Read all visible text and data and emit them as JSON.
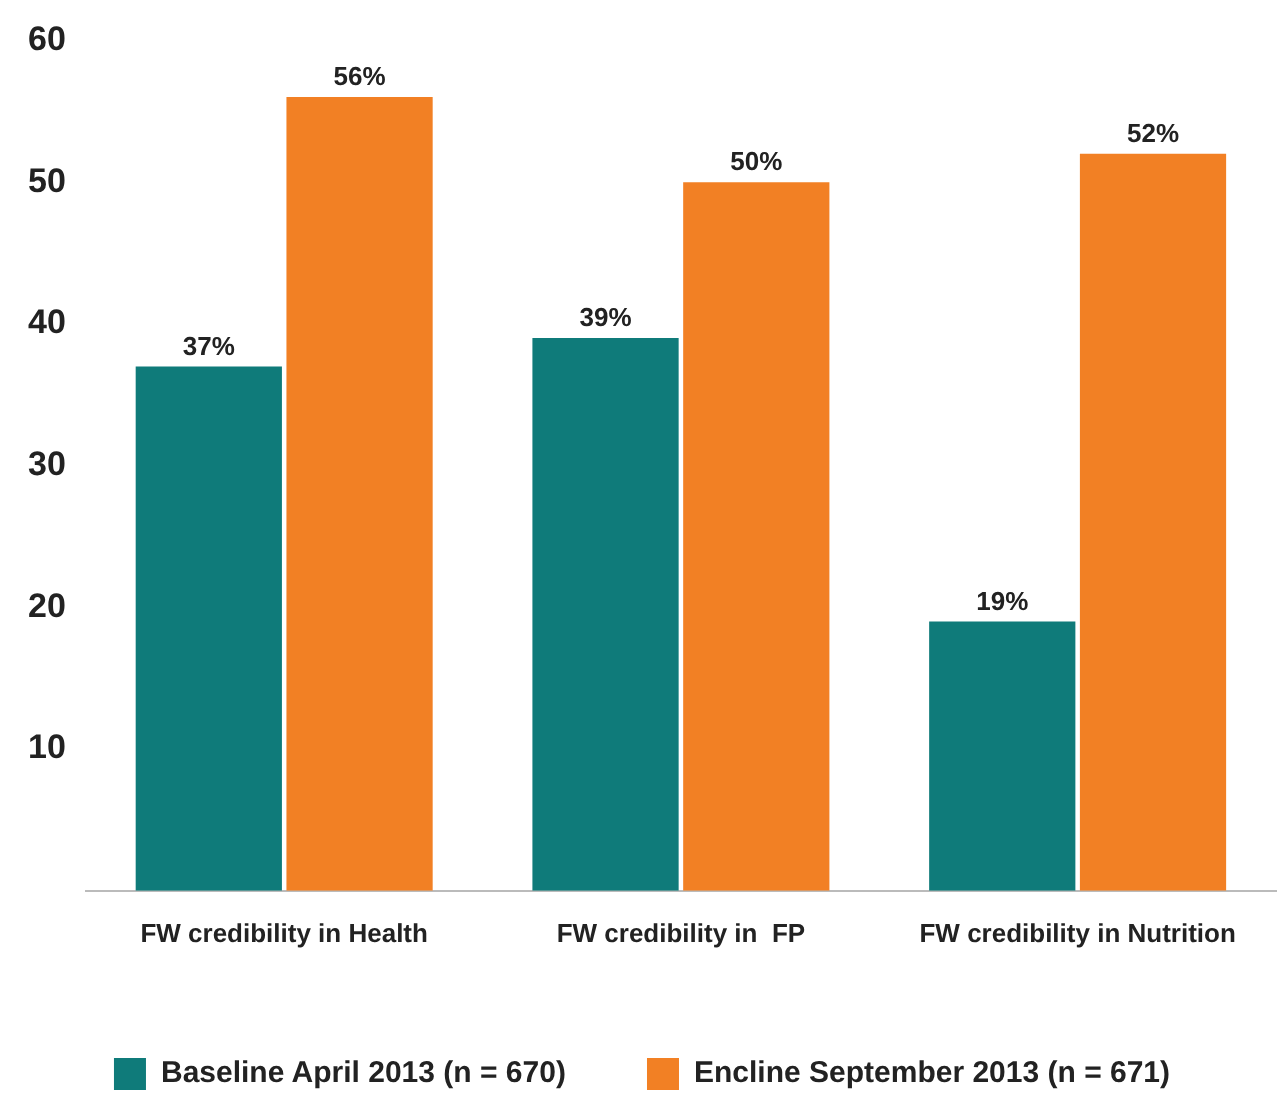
{
  "chart_data": {
    "type": "bar",
    "categories": [
      "FW credibility in Health",
      "FW credibility in  FP",
      "FW credibility in Nutrition"
    ],
    "series": [
      {
        "name": "Baseline April 2013 (n = 670)",
        "color": "#0f7b7a",
        "values": [
          37,
          39,
          19
        ],
        "value_labels": [
          "37%",
          "39%",
          "19%"
        ]
      },
      {
        "name": "Encline September 2013 (n = 671)",
        "color": "#f28024",
        "values": [
          56,
          50,
          52
        ],
        "value_labels": [
          "56%",
          "50%",
          "52%"
        ]
      }
    ],
    "ylim": [
      0,
      60
    ],
    "yticks": [
      10,
      20,
      30,
      40,
      50,
      60
    ],
    "grid": false,
    "legend": "bottom"
  }
}
